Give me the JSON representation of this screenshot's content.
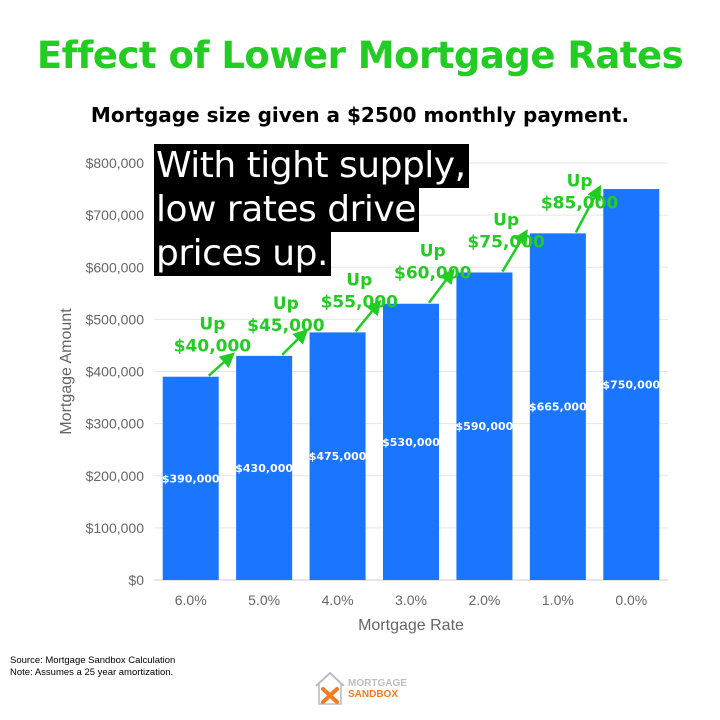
{
  "header": {
    "title": "Effect of Lower Mortgage Rates",
    "subtitle": "Mortgage size given a $2500 monthly payment."
  },
  "callout": {
    "lines": [
      "With tight supply,",
      "low rates drive",
      "prices up."
    ]
  },
  "colors": {
    "title": "#22cc22",
    "bar": "#1a75ff",
    "arrow": "#22cc22",
    "grid": "#e6e6e6",
    "axis_text": "#666666"
  },
  "chart_data": {
    "type": "bar",
    "categories": [
      "6.0%",
      "5.0%",
      "4.0%",
      "3.0%",
      "2.0%",
      "1.0%",
      "0.0%"
    ],
    "values": [
      390000,
      430000,
      475000,
      530000,
      590000,
      665000,
      750000
    ],
    "data_labels": [
      "$390,000",
      "$430,000",
      "$475,000",
      "$530,000",
      "$590,000",
      "$665,000",
      "$750,000"
    ],
    "increase_labels": [
      [
        "Up",
        "$40,000"
      ],
      [
        "Up",
        "$45,000"
      ],
      [
        "Up",
        "$55,000"
      ],
      [
        "Up",
        "$60,000"
      ],
      [
        "Up",
        "$75,000"
      ],
      [
        "Up",
        "$85,000"
      ]
    ],
    "xlabel": "Mortgage Rate",
    "ylabel": "Mortgage Amount",
    "ylim": [
      0,
      800000
    ],
    "yticks": [
      "$0",
      "$100,000",
      "$200,000",
      "$300,000",
      "$400,000",
      "$500,000",
      "$600,000",
      "$700,000",
      "$800,000"
    ],
    "grid": true,
    "legend": "none"
  },
  "footer": {
    "source": "Source: Mortgage Sandbox Calculation",
    "note": "Note: Assumes a 25 year amortization."
  },
  "logo": {
    "line1": "MORTGAGE",
    "line2": "SANDBOX"
  }
}
